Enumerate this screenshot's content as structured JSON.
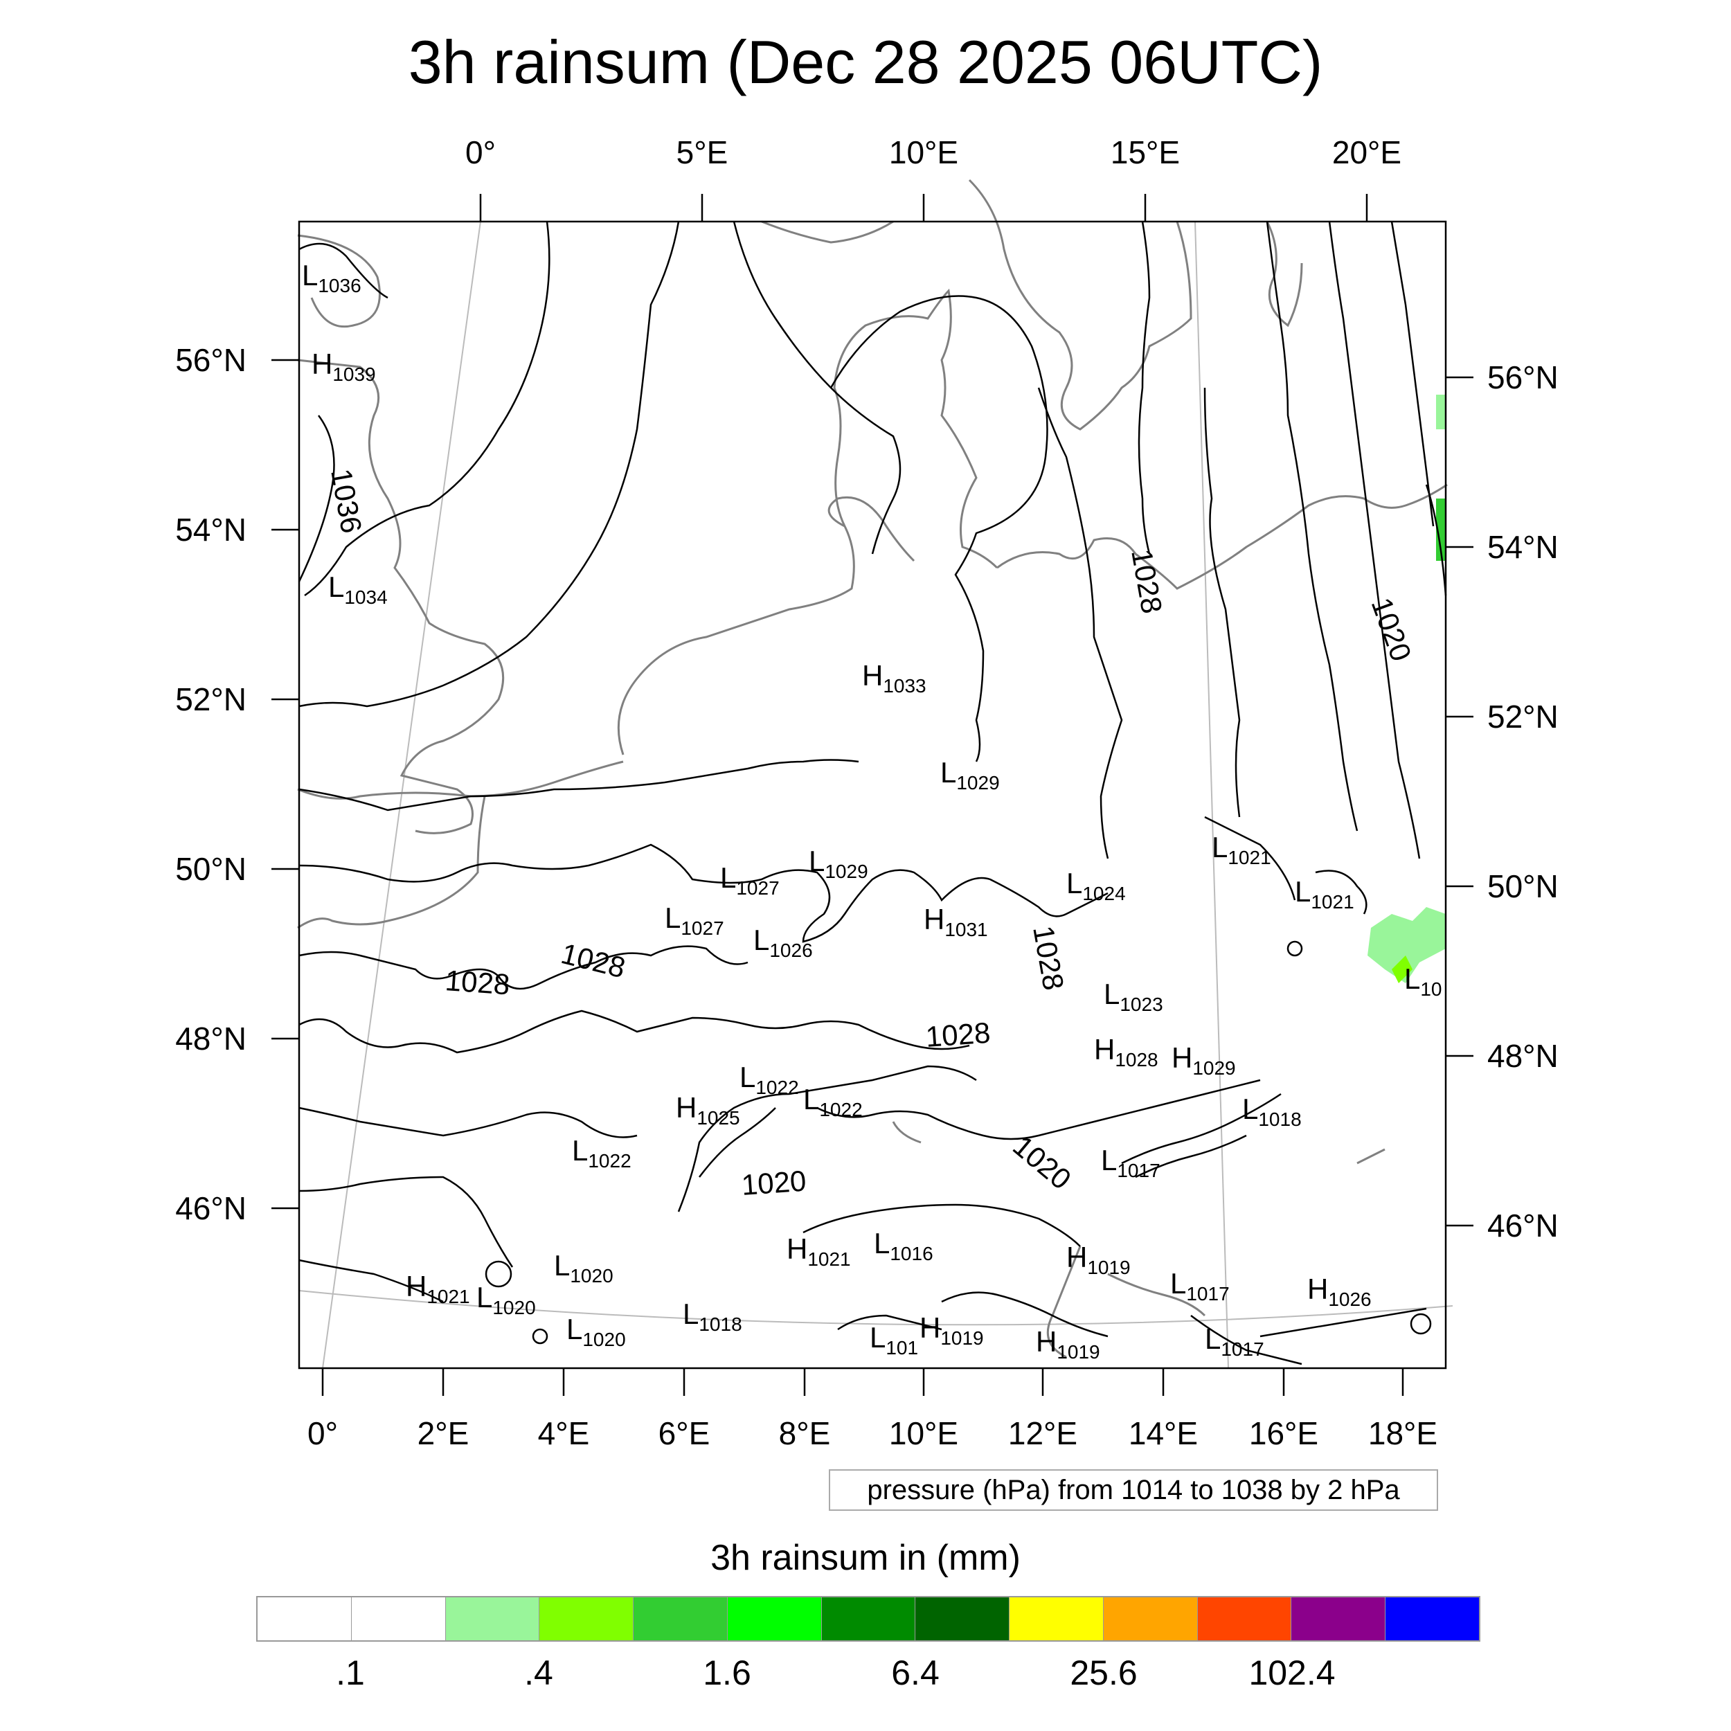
{
  "title": "3h rainsum (Dec 28 2025 06UTC)",
  "top_lon_labels": [
    "0°",
    "5°E",
    "10°E",
    "15°E",
    "20°E"
  ],
  "bottom_lon_labels": [
    "0°",
    "2°E",
    "4°E",
    "6°E",
    "8°E",
    "10°E",
    "12°E",
    "14°E",
    "16°E",
    "18°E"
  ],
  "left_lat_labels": [
    "56°N",
    "54°N",
    "52°N",
    "50°N",
    "48°N",
    "46°N"
  ],
  "right_lat_labels": [
    "56°N",
    "54°N",
    "52°N",
    "50°N",
    "48°N",
    "46°N"
  ],
  "pressure_centers": [
    {
      "type": "L",
      "value": "1036"
    },
    {
      "type": "H",
      "value": "1039"
    },
    {
      "type": "L",
      "value": "1034"
    },
    {
      "type": "H",
      "value": "1033"
    },
    {
      "type": "L",
      "value": "1029"
    },
    {
      "type": "L",
      "value": "1029"
    },
    {
      "type": "L",
      "value": "1027"
    },
    {
      "type": "L",
      "value": "1027"
    },
    {
      "type": "L",
      "value": "1026"
    },
    {
      "type": "H",
      "value": "1031"
    },
    {
      "type": "L",
      "value": "1024"
    },
    {
      "type": "L",
      "value": "1021"
    },
    {
      "type": "L",
      "value": "1021"
    },
    {
      "type": "L",
      "value": "1023"
    },
    {
      "type": "H",
      "value": "1028"
    },
    {
      "type": "H",
      "value": "1029"
    },
    {
      "type": "L",
      "value": "1022"
    },
    {
      "type": "L",
      "value": "1022"
    },
    {
      "type": "H",
      "value": "1025"
    },
    {
      "type": "L",
      "value": "1018"
    },
    {
      "type": "L",
      "value": "1022"
    },
    {
      "type": "L",
      "value": "1017"
    },
    {
      "type": "L",
      "value": "1020"
    },
    {
      "type": "H",
      "value": "1021"
    },
    {
      "type": "L",
      "value": "1016"
    },
    {
      "type": "H",
      "value": "1019"
    },
    {
      "type": "H",
      "value": "1021"
    },
    {
      "type": "L",
      "value": "1020"
    },
    {
      "type": "L",
      "value": "1017"
    },
    {
      "type": "H",
      "value": "1026"
    },
    {
      "type": "L",
      "value": "1018"
    },
    {
      "type": "L",
      "value": "1020"
    },
    {
      "type": "H",
      "value": "1019"
    },
    {
      "type": "H",
      "value": "1019"
    },
    {
      "type": "L",
      "value": "1017"
    },
    {
      "type": "L",
      "value": "10"
    },
    {
      "type": "L",
      "value": "101"
    }
  ],
  "isobar_labels": [
    "1036",
    "1028",
    "1028",
    "1028",
    "1028",
    "1028",
    "1020",
    "1020",
    "1020"
  ],
  "contour_info": "pressure (hPa) from 1014 to 1038 by 2 hPa",
  "colorbar": {
    "title": "3h rainsum in (mm)",
    "colors": [
      "#ffffff",
      "#ffffff",
      "#99f59a",
      "#80ff00",
      "#32cd32",
      "#00ff00",
      "#008b00",
      "#006400",
      "#ffff00",
      "#ffa500",
      "#ff4500",
      "#8b008b",
      "#0000ff"
    ],
    "labels": [
      ".1",
      ".4",
      "1.6",
      "6.4",
      "25.6",
      "102.4"
    ]
  },
  "colors": {
    "isobar": "#000000",
    "coastline": "#808080",
    "grid": "#bbbbbb"
  }
}
